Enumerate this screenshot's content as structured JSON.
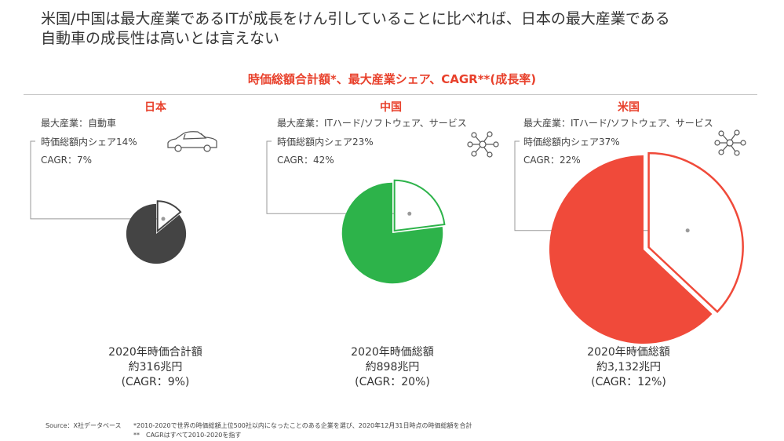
{
  "headline": {
    "line1": "米国/中国は最大産業であるITが成長をけん引していることに比べれば、日本の最大産業である",
    "line2": "自動車の成長性は高いとは言えない"
  },
  "subtitle": "時価総額合計額*、最大産業シェア、CAGR**(成長率)",
  "colors": {
    "accent": "#e8412c",
    "japan": "#444444",
    "china": "#2db34a",
    "usa": "#f04a3a",
    "connector": "#9a9a9a"
  },
  "panels": [
    {
      "country": "日本",
      "industry": "最大産業：自動車",
      "share_label": "時価総額内シェア14%",
      "cagr_label": "CAGR：7%",
      "icon": "car-icon",
      "total_line1": "2020年時価合計額",
      "total_line2": "約316兆円",
      "total_line3": "(CAGR：9%)"
    },
    {
      "country": "中国",
      "industry": "最大産業：ITハード/ソフトウェア、サービス",
      "share_label": "時価総額内シェア23%",
      "cagr_label": "CAGR：42%",
      "icon": "network-icon",
      "total_line1": "2020年時価総額",
      "total_line2": "約898兆円",
      "total_line3": "(CAGR：20%)"
    },
    {
      "country": "米国",
      "industry": "最大産業：ITハード/ソフトウェア、サービス",
      "share_label": "時価総額内シェア37%",
      "cagr_label": "CAGR：22%",
      "icon": "network-icon",
      "total_line1": "2020年時価総額",
      "total_line2": "約3,132兆円",
      "total_line3": "(CAGR：12%)"
    }
  ],
  "chart_data": {
    "type": "pie",
    "series": [
      {
        "name": "日本",
        "total": 316,
        "total_cagr": 9,
        "industry_share": 14,
        "industry_cagr": 7
      },
      {
        "name": "中国",
        "total": 898,
        "total_cagr": 20,
        "industry_share": 23,
        "industry_cagr": 42
      },
      {
        "name": "米国",
        "total": 3132,
        "total_cagr": 12,
        "industry_share": 37,
        "industry_cagr": 22
      }
    ]
  },
  "footer": {
    "source": "Source：X社データベース",
    "note1": "*2010-2020で世界の時価総額上位500社以内になったことのある企業を選び、2020年12月31日時点の時価総額を合計",
    "note2": "**　CAGRはすべて2010-2020を指す"
  }
}
